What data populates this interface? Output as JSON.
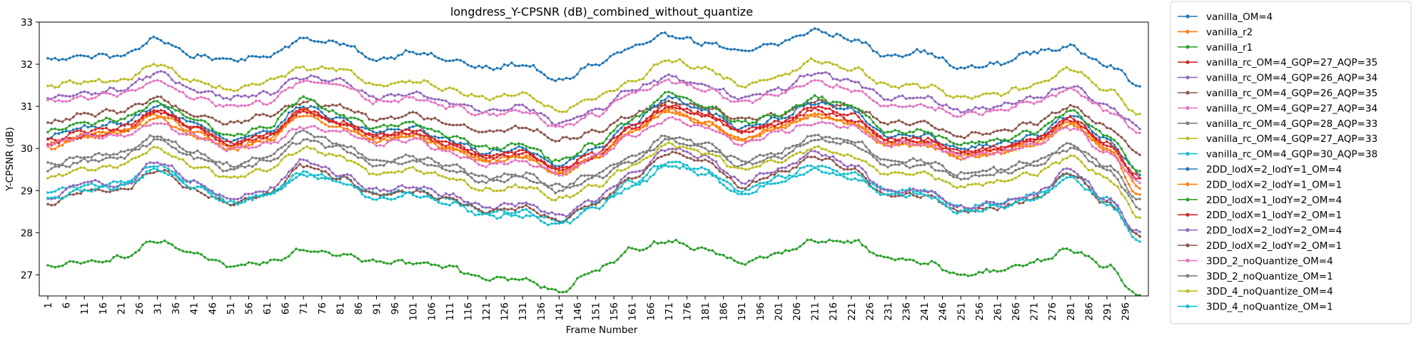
{
  "chart_data": {
    "type": "line",
    "title": "longdress_Y-CPSNR (dB)_combined_without_quantize",
    "xlabel": "Frame Number",
    "ylabel": "Y-CPSNR (dB)",
    "xlim": [
      1,
      300
    ],
    "ylim": [
      26.5,
      33.0
    ],
    "x_ticks": [
      1,
      6,
      11,
      16,
      21,
      26,
      31,
      36,
      41,
      46,
      51,
      56,
      61,
      66,
      71,
      76,
      81,
      86,
      91,
      96,
      101,
      106,
      111,
      116,
      121,
      126,
      131,
      136,
      141,
      146,
      151,
      156,
      161,
      166,
      171,
      176,
      181,
      186,
      191,
      196,
      201,
      206,
      211,
      216,
      221,
      226,
      231,
      236,
      241,
      246,
      251,
      256,
      261,
      266,
      271,
      276,
      281,
      286,
      291,
      296
    ],
    "y_ticks": [
      27,
      28,
      29,
      30,
      31,
      32,
      33
    ],
    "grid": false,
    "legend_position": "outside-right",
    "marker": "dot",
    "x_keyframes": [
      1,
      11,
      21,
      31,
      41,
      51,
      61,
      71,
      81,
      91,
      101,
      111,
      121,
      131,
      141,
      151,
      161,
      171,
      181,
      191,
      201,
      211,
      221,
      231,
      241,
      251,
      261,
      271,
      281,
      291,
      300
    ],
    "series": [
      {
        "name": "vanilla_OM=4",
        "color": "#1f77b4",
        "values": [
          32.1,
          32.2,
          32.2,
          32.6,
          32.2,
          32.1,
          32.2,
          32.6,
          32.5,
          32.1,
          32.3,
          32.1,
          31.9,
          32.0,
          31.6,
          32.0,
          32.4,
          32.7,
          32.5,
          32.3,
          32.5,
          32.8,
          32.6,
          32.2,
          32.3,
          31.9,
          32.0,
          32.3,
          32.4,
          32.0,
          31.5
        ]
      },
      {
        "name": "vanilla_r2",
        "color": "#ff7f0e",
        "values": [
          30.0,
          30.3,
          30.4,
          30.8,
          30.4,
          30.0,
          30.2,
          30.9,
          30.6,
          30.2,
          30.3,
          30.0,
          29.7,
          29.8,
          29.4,
          29.8,
          30.4,
          30.9,
          30.6,
          30.2,
          30.5,
          30.8,
          30.6,
          30.1,
          30.1,
          29.8,
          29.9,
          30.1,
          30.6,
          30.0,
          28.9
        ]
      },
      {
        "name": "vanilla_r1",
        "color": "#2ca02c",
        "values": [
          27.2,
          27.3,
          27.4,
          27.8,
          27.5,
          27.2,
          27.3,
          27.6,
          27.5,
          27.3,
          27.3,
          27.2,
          26.9,
          26.9,
          26.6,
          27.1,
          27.6,
          27.8,
          27.6,
          27.3,
          27.5,
          27.8,
          27.8,
          27.4,
          27.3,
          27.0,
          27.1,
          27.3,
          27.6,
          27.2,
          26.5
        ]
      },
      {
        "name": "vanilla_rc_OM=4_GQP=27_AQP=35",
        "color": "#d62728",
        "values": [
          30.1,
          30.3,
          30.4,
          30.9,
          30.5,
          30.1,
          30.3,
          30.9,
          30.6,
          30.3,
          30.4,
          30.1,
          29.8,
          29.9,
          29.5,
          29.8,
          30.5,
          31.0,
          30.8,
          30.4,
          30.6,
          31.0,
          30.8,
          30.2,
          30.2,
          29.9,
          30.0,
          30.2,
          30.7,
          30.1,
          29.3
        ]
      },
      {
        "name": "vanilla_rc_OM=4_GQP=26_AQP=34",
        "color": "#9467bd",
        "values": [
          31.2,
          31.3,
          31.4,
          31.8,
          31.4,
          31.2,
          31.3,
          31.7,
          31.6,
          31.2,
          31.3,
          31.1,
          30.9,
          31.0,
          30.6,
          30.9,
          31.4,
          31.7,
          31.5,
          31.2,
          31.4,
          31.8,
          31.6,
          31.2,
          31.2,
          30.9,
          31.0,
          31.2,
          31.5,
          31.0,
          30.5
        ]
      },
      {
        "name": "vanilla_rc_OM=4_GQP=26_AQP=35",
        "color": "#8c564b",
        "values": [
          30.6,
          30.8,
          30.9,
          31.2,
          30.8,
          30.6,
          30.8,
          31.1,
          31.0,
          30.7,
          30.8,
          30.6,
          30.4,
          30.5,
          30.2,
          30.4,
          30.8,
          31.1,
          31.0,
          30.7,
          30.8,
          31.1,
          31.0,
          30.6,
          30.6,
          30.3,
          30.4,
          30.6,
          31.0,
          30.5,
          29.9
        ]
      },
      {
        "name": "vanilla_rc_OM=4_GQP=27_AQP=34",
        "color": "#e377c2",
        "values": [
          31.1,
          31.2,
          31.3,
          31.6,
          31.2,
          31.0,
          31.1,
          31.6,
          31.5,
          31.1,
          31.2,
          31.0,
          30.8,
          30.9,
          30.5,
          30.8,
          31.3,
          31.6,
          31.4,
          31.1,
          31.3,
          31.6,
          31.4,
          31.0,
          31.0,
          30.8,
          30.9,
          31.1,
          31.4,
          30.9,
          30.4
        ]
      },
      {
        "name": "vanilla_rc_OM=4_GQP=28_AQP=33",
        "color": "#7f7f7f",
        "values": [
          29.6,
          29.8,
          29.9,
          30.3,
          29.9,
          29.6,
          29.8,
          30.4,
          30.1,
          29.7,
          29.8,
          29.6,
          29.3,
          29.4,
          29.1,
          29.4,
          29.8,
          30.3,
          30.1,
          29.7,
          29.9,
          30.3,
          30.2,
          29.7,
          29.7,
          29.4,
          29.5,
          29.7,
          30.1,
          29.6,
          28.8
        ]
      },
      {
        "name": "vanilla_rc_OM=4_GQP=27_AQP=33",
        "color": "#bcbd22",
        "values": [
          31.5,
          31.6,
          31.6,
          32.0,
          31.6,
          31.4,
          31.6,
          31.9,
          31.9,
          31.5,
          31.6,
          31.4,
          31.2,
          31.3,
          30.9,
          31.2,
          31.6,
          32.1,
          31.9,
          31.5,
          31.7,
          32.1,
          31.9,
          31.5,
          31.5,
          31.2,
          31.3,
          31.5,
          31.9,
          31.4,
          30.8
        ]
      },
      {
        "name": "vanilla_rc_OM=4_GQP=30_AQP=38",
        "color": "#17becf",
        "values": [
          29.0,
          29.1,
          29.2,
          29.6,
          29.2,
          28.7,
          28.9,
          29.4,
          29.3,
          28.9,
          29.0,
          28.8,
          28.5,
          28.5,
          28.3,
          28.7,
          29.2,
          29.7,
          29.5,
          29.0,
          29.3,
          29.6,
          29.4,
          29.0,
          29.0,
          28.6,
          28.7,
          28.9,
          29.4,
          28.8,
          27.9
        ]
      },
      {
        "name": "2DD_lodX=2_lodY=1_OM=4",
        "color": "#1f77b4",
        "values": [
          30.3,
          30.5,
          30.6,
          31.0,
          30.6,
          30.2,
          30.4,
          31.0,
          30.7,
          30.4,
          30.5,
          30.2,
          29.9,
          30.0,
          29.6,
          30.0,
          30.6,
          31.2,
          30.9,
          30.5,
          30.7,
          31.1,
          30.9,
          30.3,
          30.3,
          30.0,
          30.1,
          30.3,
          30.8,
          30.2,
          29.4
        ]
      },
      {
        "name": "2DD_lodX=2_lodY=1_OM=1",
        "color": "#ff7f0e",
        "values": [
          30.1,
          30.3,
          30.4,
          30.7,
          30.3,
          30.0,
          30.2,
          30.8,
          30.5,
          30.2,
          30.3,
          30.0,
          29.7,
          29.8,
          29.4,
          29.8,
          30.4,
          30.9,
          30.6,
          30.2,
          30.5,
          30.8,
          30.6,
          30.1,
          30.1,
          29.8,
          29.9,
          30.1,
          30.6,
          30.0,
          29.1
        ]
      },
      {
        "name": "2DD_lodX=1_lodY=2_OM=4",
        "color": "#2ca02c",
        "values": [
          30.4,
          30.6,
          30.7,
          31.1,
          30.7,
          30.3,
          30.5,
          31.2,
          30.8,
          30.5,
          30.6,
          30.3,
          30.0,
          30.1,
          29.7,
          30.1,
          30.7,
          31.3,
          31.0,
          30.6,
          30.8,
          31.2,
          31.0,
          30.4,
          30.4,
          30.1,
          30.2,
          30.4,
          30.9,
          30.3,
          29.5
        ]
      },
      {
        "name": "2DD_lodX=1_lodY=2_OM=1",
        "color": "#d62728",
        "values": [
          30.2,
          30.4,
          30.5,
          30.9,
          30.5,
          30.1,
          30.3,
          30.9,
          30.6,
          30.3,
          30.4,
          30.1,
          29.8,
          29.9,
          29.5,
          29.9,
          30.5,
          31.0,
          30.8,
          30.4,
          30.6,
          30.9,
          30.7,
          30.2,
          30.2,
          29.9,
          30.0,
          30.2,
          30.7,
          30.1,
          29.3
        ]
      },
      {
        "name": "2DD_lodX=2_lodY=2_OM=4",
        "color": "#9467bd",
        "values": [
          28.8,
          29.2,
          29.1,
          29.7,
          29.2,
          28.8,
          29.0,
          29.7,
          29.4,
          29.0,
          29.1,
          28.9,
          28.6,
          28.7,
          28.4,
          28.8,
          29.4,
          30.0,
          29.8,
          29.2,
          29.5,
          29.9,
          29.6,
          29.0,
          29.0,
          28.6,
          28.7,
          28.9,
          29.5,
          28.8,
          28.0
        ]
      },
      {
        "name": "2DD_lodX=2_lodY=2_OM=1",
        "color": "#8c564b",
        "values": [
          28.7,
          29.0,
          29.0,
          29.5,
          29.0,
          28.7,
          28.9,
          29.6,
          29.3,
          28.9,
          29.0,
          28.8,
          28.5,
          28.6,
          28.3,
          28.7,
          29.3,
          29.9,
          29.7,
          29.1,
          29.4,
          29.8,
          29.5,
          28.9,
          28.9,
          28.5,
          28.6,
          28.8,
          29.4,
          28.7,
          27.9
        ]
      },
      {
        "name": "3DD_2_noQuantize_OM=4",
        "color": "#e377c2",
        "values": [
          30.1,
          30.3,
          30.3,
          30.6,
          30.3,
          30.0,
          30.1,
          30.5,
          30.4,
          30.1,
          30.2,
          29.9,
          29.6,
          29.7,
          29.4,
          29.8,
          30.3,
          30.7,
          30.5,
          30.1,
          30.4,
          30.6,
          30.5,
          30.1,
          30.1,
          29.8,
          29.9,
          30.1,
          30.5,
          29.9,
          29.2
        ]
      },
      {
        "name": "3DD_2_noQuantize_OM=1",
        "color": "#7f7f7f",
        "values": [
          29.5,
          29.7,
          29.8,
          30.2,
          29.8,
          29.5,
          29.7,
          30.2,
          30.0,
          29.6,
          29.7,
          29.5,
          29.2,
          29.3,
          29.0,
          29.3,
          29.7,
          30.2,
          30.0,
          29.6,
          29.8,
          30.2,
          30.1,
          29.6,
          29.6,
          29.3,
          29.4,
          29.6,
          30.0,
          29.5,
          28.6
        ]
      },
      {
        "name": "3DD_4_noQuantize_OM=4",
        "color": "#bcbd22",
        "values": [
          29.3,
          29.5,
          29.6,
          30.0,
          29.6,
          29.3,
          29.5,
          30.0,
          29.8,
          29.4,
          29.5,
          29.3,
          29.0,
          29.1,
          28.8,
          29.1,
          29.6,
          30.1,
          29.9,
          29.5,
          29.7,
          30.0,
          29.8,
          29.4,
          29.4,
          29.1,
          29.2,
          29.4,
          29.8,
          29.3,
          28.4
        ]
      },
      {
        "name": "3DD_4_noQuantize_OM=1",
        "color": "#17becf",
        "values": [
          28.8,
          29.0,
          29.1,
          29.5,
          29.1,
          28.7,
          28.9,
          29.4,
          29.2,
          28.8,
          28.9,
          28.7,
          28.4,
          28.4,
          28.2,
          28.6,
          29.1,
          29.6,
          29.4,
          28.9,
          29.2,
          29.5,
          29.3,
          28.9,
          28.9,
          28.5,
          28.6,
          28.8,
          29.3,
          28.7,
          27.8
        ]
      }
    ]
  }
}
